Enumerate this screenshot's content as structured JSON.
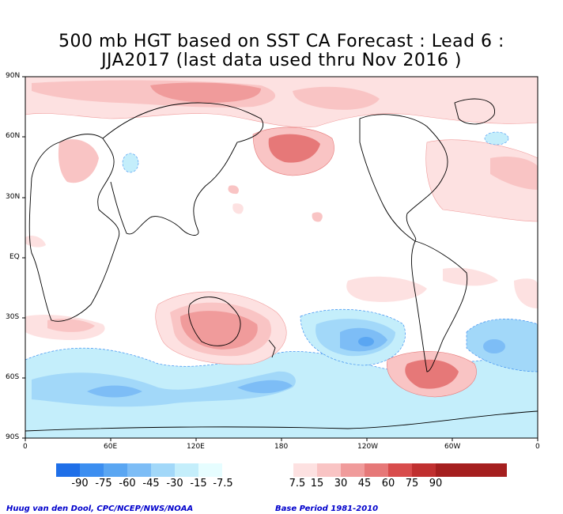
{
  "title": {
    "line1": "500 mb HGT based on SST CA Forecast : Lead 6 :",
    "line2": "JJA2017 (last data used thru Nov 2016 )"
  },
  "lat_labels": [
    "90N",
    "60N",
    "30N",
    "EQ",
    "30S",
    "60S",
    "90S"
  ],
  "lon_labels": [
    "0",
    "60E",
    "120E",
    "180",
    "120W",
    "60W",
    "0"
  ],
  "colorbar": {
    "labels": [
      "-90",
      "-75",
      "-60",
      "-45",
      "-30",
      "-15",
      "-7.5",
      "7.5",
      "15",
      "30",
      "45",
      "60",
      "75",
      "90"
    ],
    "colors": [
      "#1f6fe8",
      "#3c8ef0",
      "#5aa6f2",
      "#7dbdf6",
      "#a2d8f9",
      "#c4eefb",
      "#e6fdff",
      "#ffffff",
      "#fde1e1",
      "#f9c4c4",
      "#f09b9b",
      "#e67878",
      "#d84c4c",
      "#c03030",
      "#a51f1f"
    ]
  },
  "credits": {
    "left": "Huug van den Dool, CPC/NCEP/NWS/NOAA",
    "right": "Base Period 1981-2010"
  }
}
